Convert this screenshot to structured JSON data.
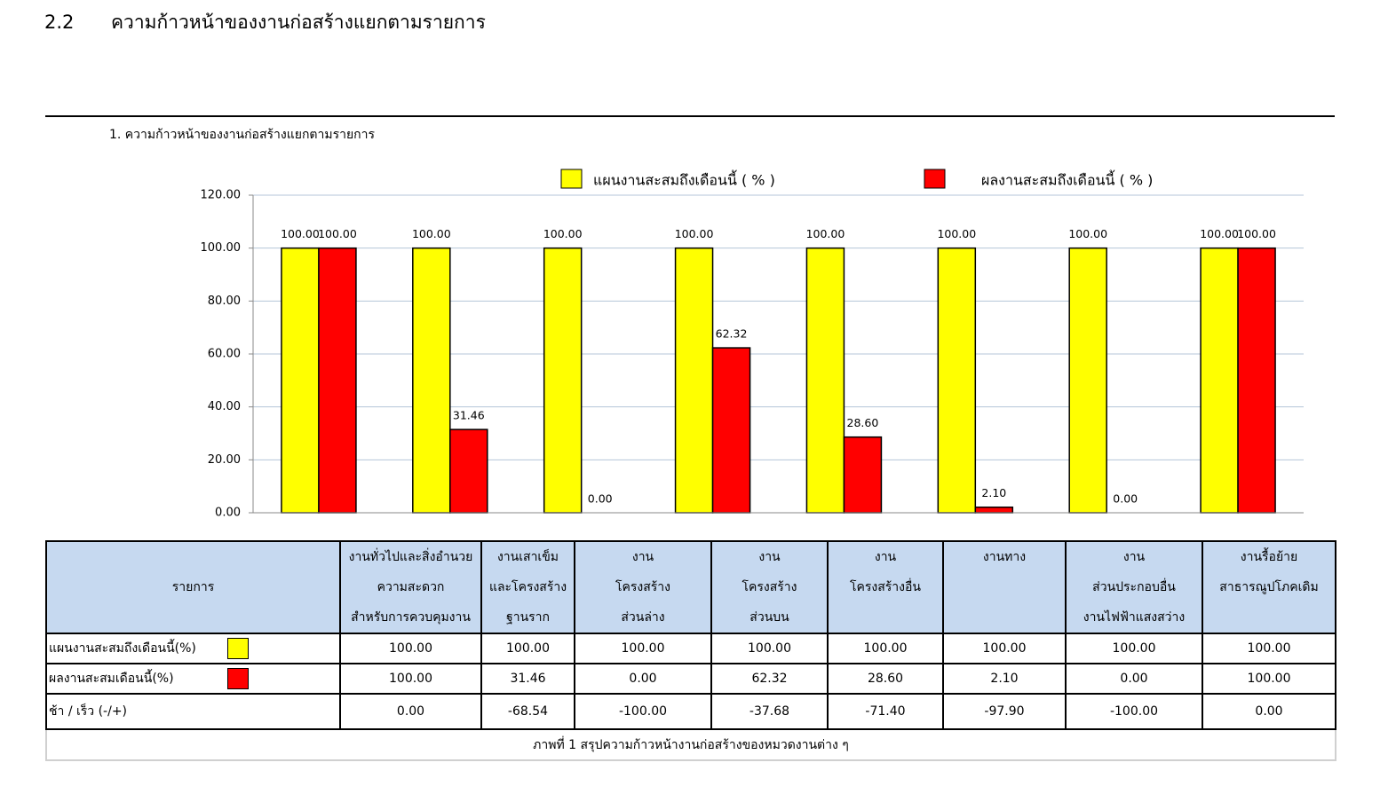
{
  "section": {
    "number": "2.2",
    "title": "ความก้าวหน้าของงานก่อสร้างแยกตามรายการ"
  },
  "chart_data": {
    "type": "bar",
    "title": "1. ความก้าวหน้าของงานก่อสร้างแยกตามรายการ",
    "categories": [
      "งานทั่วไปและสิ่งอำนวย\nความสะดวก\nสำหรับการควบคุมงาน",
      "งานเสาเข็ม\nและโครงสร้าง\nฐานราก",
      "งาน\nโครงสร้าง\nส่วนล่าง",
      "งาน\nโครงสร้าง\nส่วนบน",
      "งาน\nโครงสร้างอื่น",
      "งานทาง",
      "งาน\nส่วนประกอบอื่น\nงานไฟฟ้าแสงสว่าง",
      "งานรื้อย้าย\nสาธารณูปโภคเดิม"
    ],
    "series": [
      {
        "name": "แผนงานสะสมถึงเดือนนี้ ( % )",
        "color": "#ffff00",
        "values": [
          100,
          100,
          100,
          100,
          100,
          100,
          100,
          100
        ],
        "value_labels": [
          "100.00",
          "100.00",
          "100.00",
          "100.00",
          "100.00",
          "100.00",
          "100.00",
          "100.00"
        ]
      },
      {
        "name": "ผลงานสะสมถึงเดือนนี้ ( % )",
        "color": "#ff0000",
        "values": [
          100,
          31.46,
          0,
          62.32,
          28.6,
          2.1,
          0,
          100
        ],
        "value_labels": [
          "100.00",
          "31.46",
          "0.00",
          "62.32",
          "28.60",
          "2.10",
          "0.00",
          "100.00"
        ]
      }
    ],
    "ylim": [
      0,
      120
    ],
    "yticks": [
      {
        "value": 0,
        "label": "0.00"
      },
      {
        "value": 20,
        "label": "20.00"
      },
      {
        "value": 40,
        "label": "40.00"
      },
      {
        "value": 60,
        "label": "60.00"
      },
      {
        "value": 80,
        "label": "80.00"
      },
      {
        "value": 100,
        "label": "100.00"
      },
      {
        "value": 120,
        "label": "120.00"
      }
    ],
    "grid": true,
    "legend": "top"
  },
  "table": {
    "header": "รายการ",
    "rows": [
      {
        "label": "แผนงานสะสมถึงเดือนนี้(%)"
      },
      {
        "label": "ผลงานสะสมเดือนนี้(%)"
      },
      {
        "label": "ช้า / เร็ว  (-/+)",
        "values": [
          "0.00",
          "-68.54",
          "-100.00",
          "-37.68",
          "-71.40",
          "-97.90",
          "-100.00",
          "0.00"
        ]
      }
    ]
  },
  "caption": "ภาพที่ 1 สรุปความก้าวหน้างานก่อสร้างของหมวดงานต่าง ๆ"
}
